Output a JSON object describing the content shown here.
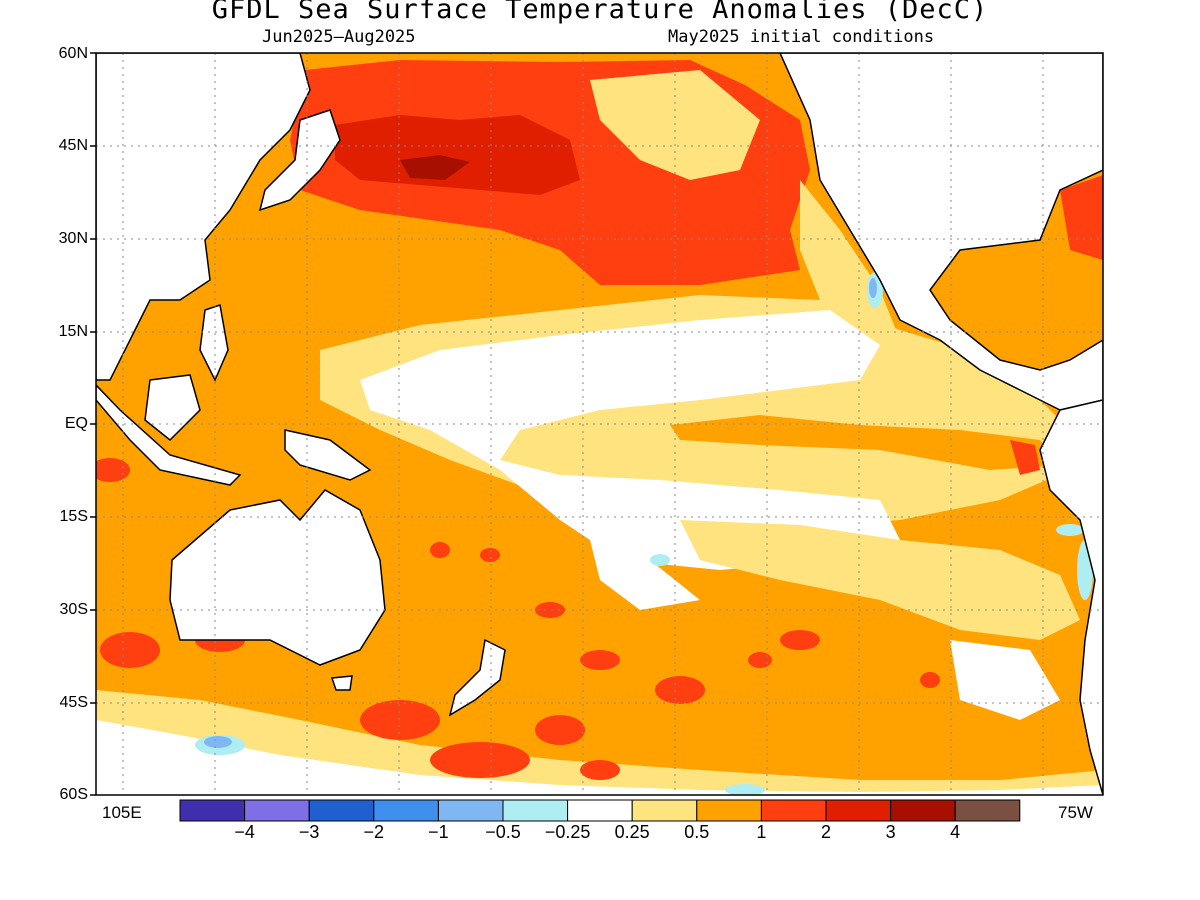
{
  "title": "GFDL Sea Surface Temperature Anomalies (DecC)",
  "subtitle_left": "Jun2025—Aug2025",
  "subtitle_right": "May2025 initial conditions",
  "lat_labels": [
    "60N",
    "45N",
    "30N",
    "15N",
    "EQ",
    "15S",
    "30S",
    "45S",
    "60S"
  ],
  "lon_left": "105E",
  "lon_right": "75W",
  "colorbar": {
    "colors": [
      "#3f2fae",
      "#7f6fe6",
      "#1f5fcf",
      "#3f8fef",
      "#7fb7f3",
      "#aeeef3",
      "#ffffff",
      "#ffe37f",
      "#ffa200",
      "#ff3f0f",
      "#df1f00",
      "#a70f00",
      "#7a5042"
    ],
    "labels": [
      "−4",
      "−3",
      "−2",
      "−1",
      "−0.5",
      "−0.25",
      "0.25",
      "0.5",
      "1",
      "2",
      "3",
      "4"
    ]
  },
  "map_colors": {
    "weak_pos": "#ffe37f",
    "moderate_pos": "#ffa200",
    "strong_pos": "#ff3f0f",
    "very_strong_pos": "#df1f00",
    "extreme_pos": "#a70f00",
    "weak_neg": "#aeeef3",
    "moderate_neg": "#7fb7f3",
    "grid": "#888888",
    "land_outline": "#000000"
  }
}
